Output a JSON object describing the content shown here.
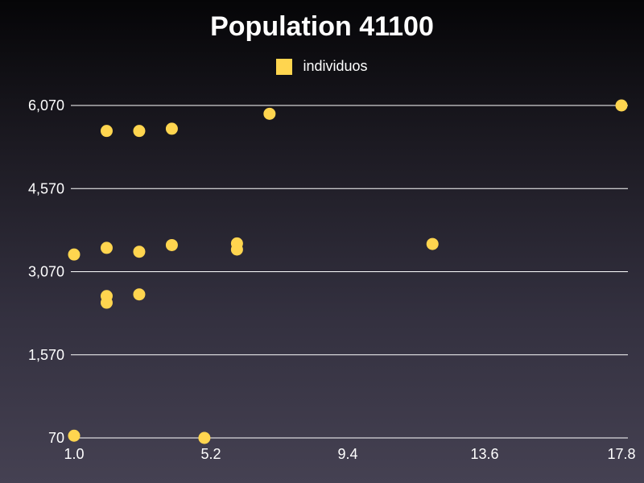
{
  "chart_data": {
    "type": "scatter",
    "title": "Population 41100",
    "xlabel": "",
    "ylabel": "",
    "xlim": [
      1.0,
      17.8
    ],
    "ylim": [
      70,
      6070
    ],
    "x_ticks": [
      "1.0",
      "5.2",
      "9.4",
      "13.6",
      "17.8"
    ],
    "y_ticks": [
      "70",
      "1,570",
      "3,070",
      "4,570",
      "6,070"
    ],
    "grid": "horizontal",
    "legend_position": "top-center",
    "series": [
      {
        "name": "individuos",
        "color": "#ffd54f",
        "points": [
          {
            "x": 1.0,
            "y": 3380
          },
          {
            "x": 1.0,
            "y": 110
          },
          {
            "x": 2.0,
            "y": 5610
          },
          {
            "x": 2.0,
            "y": 3500
          },
          {
            "x": 2.0,
            "y": 2630
          },
          {
            "x": 2.0,
            "y": 2510
          },
          {
            "x": 3.0,
            "y": 5610
          },
          {
            "x": 3.0,
            "y": 3430
          },
          {
            "x": 3.0,
            "y": 2660
          },
          {
            "x": 4.0,
            "y": 5650
          },
          {
            "x": 4.0,
            "y": 3550
          },
          {
            "x": 5.0,
            "y": 70
          },
          {
            "x": 6.0,
            "y": 3580
          },
          {
            "x": 6.0,
            "y": 3470
          },
          {
            "x": 7.0,
            "y": 5920
          },
          {
            "x": 12.0,
            "y": 3570
          },
          {
            "x": 17.8,
            "y": 6070
          }
        ]
      }
    ]
  }
}
